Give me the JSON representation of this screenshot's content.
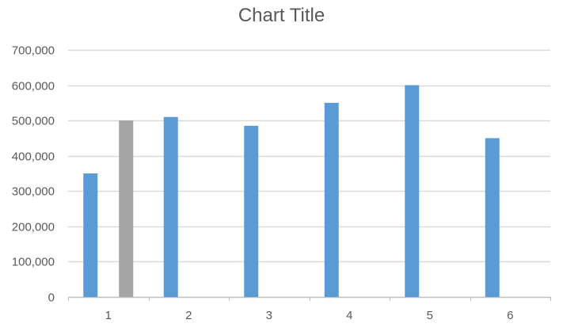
{
  "chart_data": {
    "type": "bar",
    "title": "Chart Title",
    "categories": [
      "1",
      "2",
      "3",
      "4",
      "5",
      "6"
    ],
    "series": [
      {
        "values": [
          350000,
          510000,
          485000,
          550000,
          600000,
          450000
        ],
        "color": "#5b9bd5"
      },
      {
        "values": [
          500000,
          null,
          null,
          null,
          null,
          null
        ],
        "color": "#a5a5a5"
      }
    ],
    "ylim": [
      0,
      700000
    ],
    "yticks": [
      0,
      100000,
      200000,
      300000,
      400000,
      500000,
      600000,
      700000
    ],
    "ytick_labels": [
      "0",
      "100,000",
      "200,000",
      "300,000",
      "400,000",
      "500,000",
      "600,000",
      "700,000"
    ],
    "grid": true,
    "legend": "none"
  }
}
